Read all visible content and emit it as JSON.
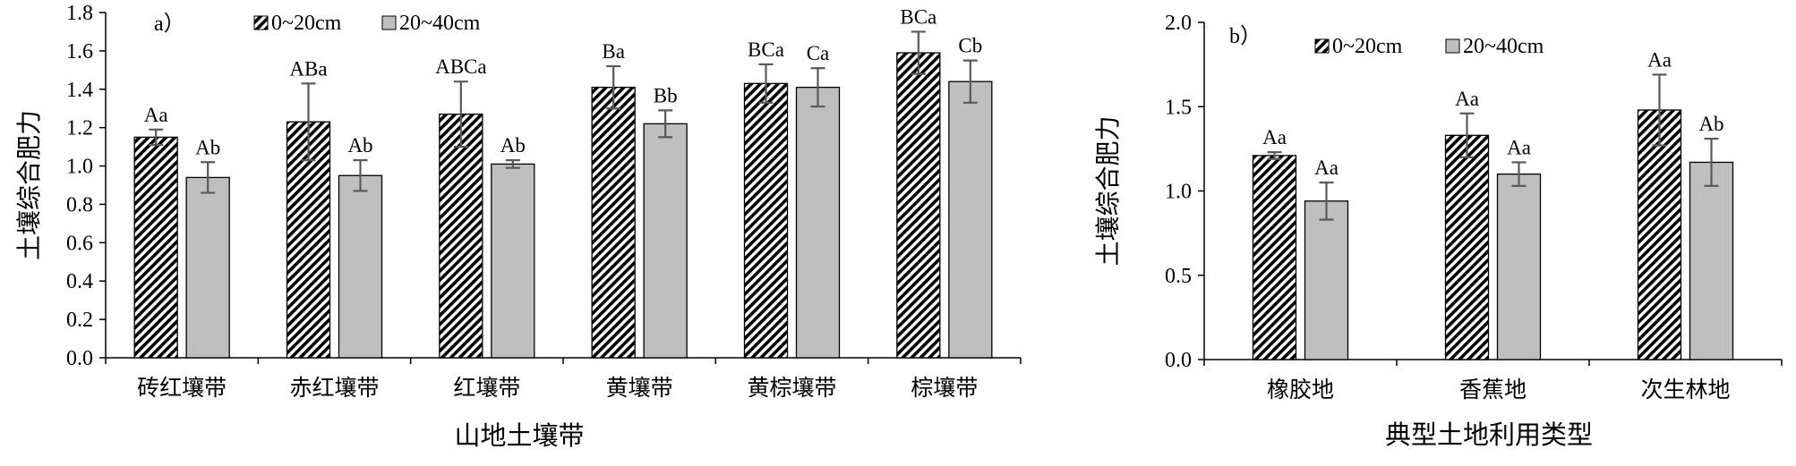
{
  "colors": {
    "hatch_fg": "#000000",
    "hatch_bg": "#ffffff",
    "solid_bar": "#bfbfbf",
    "axis": "#000000",
    "error_bar": "#595959"
  },
  "chart_data": [
    {
      "type": "bar",
      "panel_label": "a）",
      "xlabel": "山地土壤带",
      "ylabel": "土壤综合肥力",
      "ylim": [
        0,
        1.8
      ],
      "yticks": [
        "0.0",
        "0.2",
        "0.4",
        "0.6",
        "0.8",
        "1.0",
        "1.2",
        "1.4",
        "1.6",
        "1.8"
      ],
      "categories": [
        "砖红壤带",
        "赤红壤带",
        "红壤带",
        "黄壤带",
        "黄棕壤带",
        "棕壤带"
      ],
      "legend_position": "top-left",
      "series": [
        {
          "name": "0~20cm",
          "pattern": "hatched",
          "values": [
            1.15,
            1.23,
            1.27,
            1.41,
            1.43,
            1.59
          ],
          "errors": [
            0.04,
            0.2,
            0.17,
            0.11,
            0.1,
            0.11
          ],
          "labels": [
            "Aa",
            "ABa",
            "ABCa",
            "Ba",
            "BCa",
            "BCa"
          ]
        },
        {
          "name": "20~40cm",
          "pattern": "solid",
          "values": [
            0.94,
            0.95,
            1.01,
            1.22,
            1.41,
            1.44
          ],
          "errors": [
            0.08,
            0.08,
            0.02,
            0.07,
            0.1,
            0.11
          ],
          "labels": [
            "Ab",
            "Ab",
            "Ab",
            "Bb",
            "Ca",
            "Cb"
          ]
        }
      ]
    },
    {
      "type": "bar",
      "panel_label": "b）",
      "xlabel": "典型土地利用类型",
      "ylabel": "土壤综合肥力",
      "ylim": [
        0,
        2.0
      ],
      "yticks": [
        "0.0",
        "0.5",
        "1.0",
        "1.5",
        "2.0"
      ],
      "categories": [
        "橡胶地",
        "香蕉地",
        "次生林地"
      ],
      "legend_position": "top-left",
      "series": [
        {
          "name": "0~20cm",
          "pattern": "hatched",
          "values": [
            1.21,
            1.33,
            1.48
          ],
          "errors": [
            0.02,
            0.13,
            0.21
          ],
          "labels": [
            "Aa",
            "Aa",
            "Aa"
          ]
        },
        {
          "name": "20~40cm",
          "pattern": "solid",
          "values": [
            0.94,
            1.1,
            1.17
          ],
          "errors": [
            0.11,
            0.07,
            0.14
          ],
          "labels": [
            "Aa",
            "Aa",
            "Ab"
          ]
        }
      ]
    }
  ]
}
